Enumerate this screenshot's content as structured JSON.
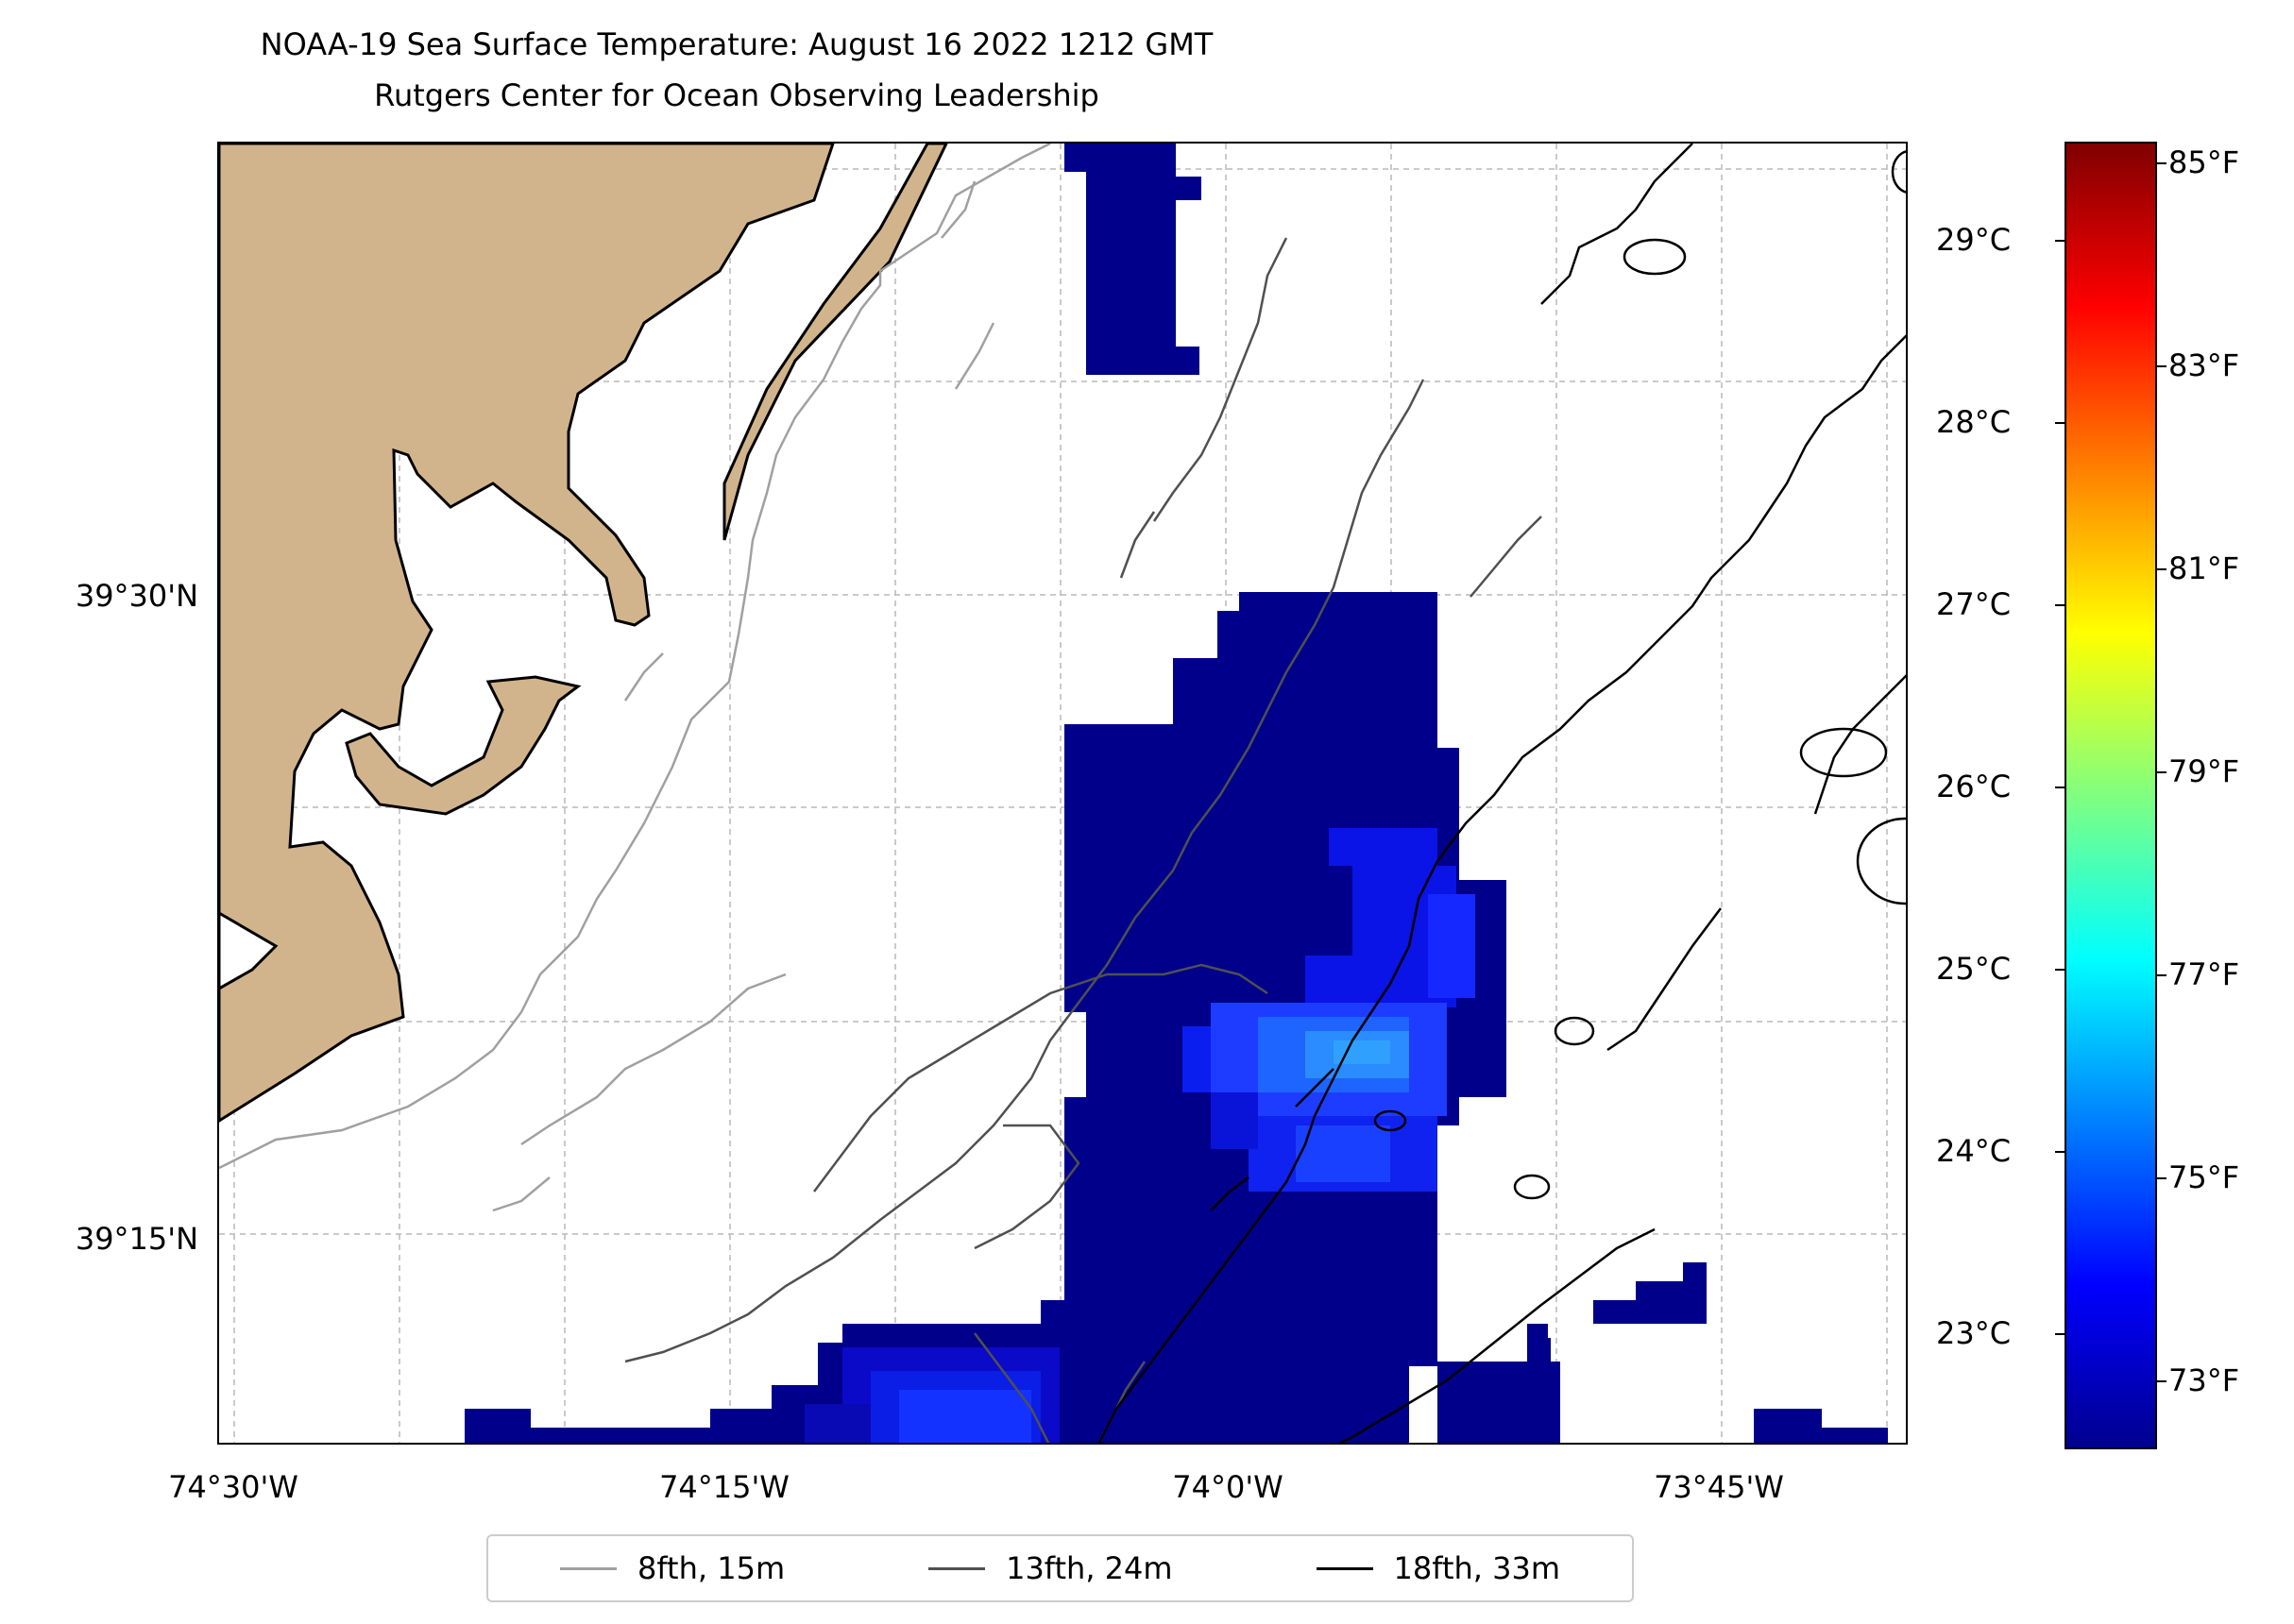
{
  "title": {
    "line1": "NOAA-19 Sea Surface Temperature: August 16 2022 1212 GMT",
    "line2": "Rutgers Center for Ocean Observing Leadership"
  },
  "map": {
    "lat_labels": [
      "39°30'N",
      "39°15'N"
    ],
    "lon_labels": [
      "74°30'W",
      "74°15'W",
      "74°0'W",
      "73°45'W"
    ],
    "land_color": "#d2b48c",
    "grid": true
  },
  "colorbar": {
    "celsius_labels": [
      "29°C",
      "28°C",
      "27°C",
      "26°C",
      "25°C",
      "24°C",
      "23°C"
    ],
    "fahrenheit_labels": [
      "85°F",
      "83°F",
      "81°F",
      "79°F",
      "77°F",
      "75°F",
      "73°F"
    ],
    "colormap": "jet"
  },
  "legend": {
    "items": [
      {
        "label": "8fth, 15m",
        "color": "#a0a0a0"
      },
      {
        "label": "13fth, 24m",
        "color": "#505050"
      },
      {
        "label": "18fth, 33m",
        "color": "#000000"
      }
    ]
  }
}
